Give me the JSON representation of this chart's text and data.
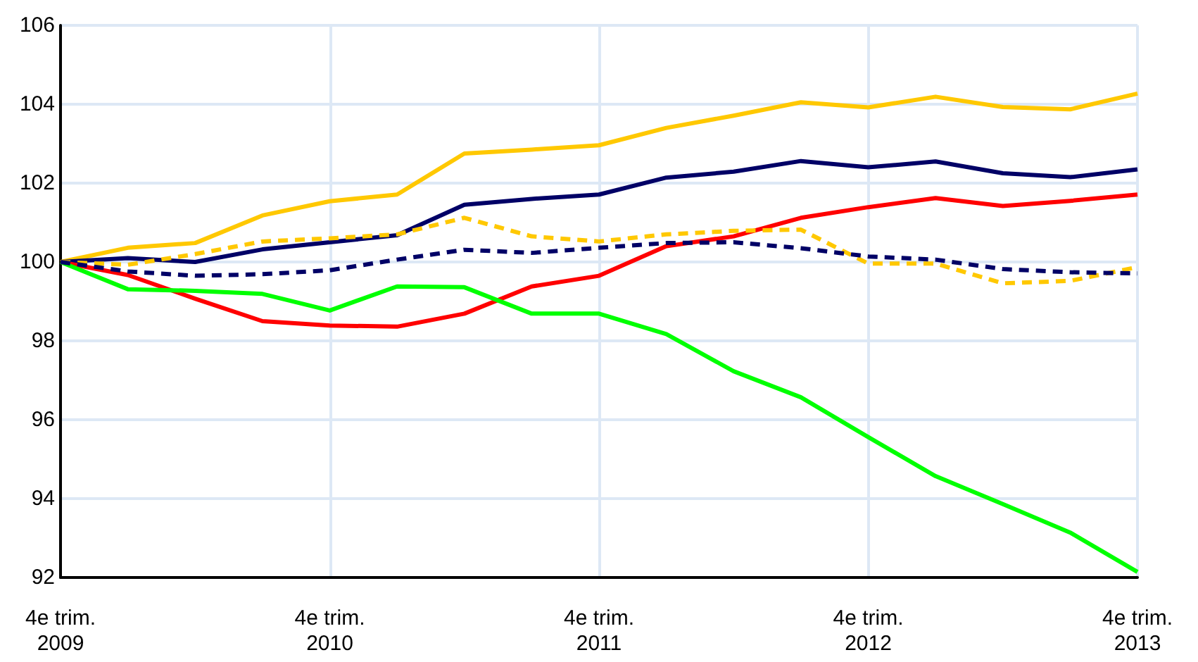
{
  "chart_data": {
    "type": "line",
    "categories": [
      "4e trim.\n2009",
      null,
      null,
      null,
      "4e trim.\n2010",
      null,
      null,
      null,
      "4e trim.\n2011",
      null,
      null,
      null,
      "4e trim.\n2012",
      null,
      null,
      null,
      "4e trim.\n2013"
    ],
    "series": [
      {
        "color": "#ffc800",
        "line_style": "solid",
        "values": [
          100,
          100.36,
          100.48,
          101.18,
          101.54,
          101.71,
          102.75,
          102.85,
          102.96,
          103.4,
          103.71,
          104.05,
          103.92,
          104.19,
          103.93,
          103.87,
          104.27
        ]
      },
      {
        "color": "#000066",
        "line_style": "solid",
        "values": [
          100,
          100.1,
          100,
          100.32,
          100.5,
          100.68,
          101.45,
          101.6,
          101.71,
          102.14,
          102.29,
          102.56,
          102.4,
          102.55,
          102.25,
          102.15,
          102.35
        ]
      },
      {
        "color": "#ff0000",
        "line_style": "solid",
        "values": [
          100,
          99.67,
          99.07,
          98.5,
          98.39,
          98.36,
          98.69,
          99.38,
          99.65,
          100.4,
          100.65,
          101.12,
          101.39,
          101.62,
          101.42,
          101.55,
          101.71
        ]
      },
      {
        "color": "#00ff00",
        "line_style": "solid",
        "values": [
          100,
          99.31,
          99.27,
          99.19,
          98.77,
          99.38,
          99.36,
          98.69,
          98.69,
          98.17,
          97.23,
          96.57,
          95.56,
          94.57,
          93.86,
          93.14,
          92.14
        ]
      },
      {
        "color": "#ffc800",
        "line_style": "dashed",
        "values": [
          100,
          99.93,
          100.2,
          100.52,
          100.6,
          100.7,
          101.12,
          100.65,
          100.52,
          100.7,
          100.79,
          100.82,
          99.96,
          99.96,
          99.46,
          99.52,
          99.87
        ]
      },
      {
        "color": "#000066",
        "line_style": "dashed",
        "values": [
          100,
          99.76,
          99.65,
          99.69,
          99.79,
          100.06,
          100.31,
          100.23,
          100.36,
          100.48,
          100.5,
          100.35,
          100.14,
          100.06,
          99.82,
          99.74,
          99.71
        ]
      }
    ],
    "ylim": [
      92,
      106
    ],
    "yticks": [
      92,
      94,
      96,
      98,
      100,
      102,
      104,
      106
    ],
    "grid": true,
    "marker": "none"
  }
}
